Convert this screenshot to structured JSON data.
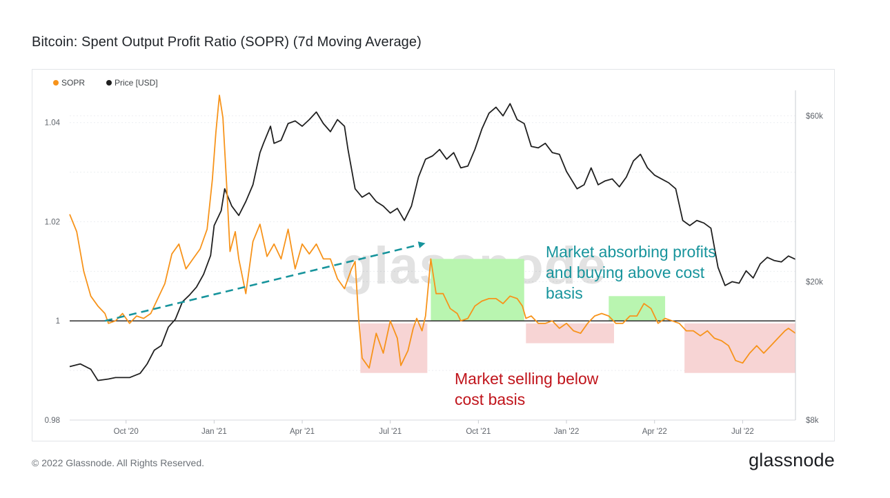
{
  "page": {
    "title": "Bitcoin: Spent Output Profit Ratio (SOPR) (7d Moving Average)",
    "copyright": "© 2022 Glassnode. All Rights Reserved.",
    "brand": "glassnode",
    "watermark": "glassnode"
  },
  "chart_data": {
    "type": "line",
    "title": "Bitcoin: Spent Output Profit Ratio (SOPR) (7d Moving Average)",
    "x_labels": [
      "Oct '20",
      "Jan '21",
      "Apr '21",
      "Jul '21",
      "Oct '21",
      "Jan '22",
      "Apr '22",
      "Jul '22"
    ],
    "y_left": {
      "label": "SOPR",
      "ticks": [
        "0.98",
        "1",
        "1.02",
        "1.04"
      ],
      "tick_values": [
        0.98,
        1.0,
        1.02,
        1.04
      ],
      "range": [
        0.98,
        1.0465
      ]
    },
    "y_right": {
      "label": "Price [USD]",
      "scale": "log",
      "ticks": [
        "$8k",
        "$20k",
        "$60k"
      ],
      "tick_values": [
        8000,
        20000,
        60000
      ],
      "range": [
        8000,
        71000
      ]
    },
    "reference_line": {
      "value": 1,
      "axis": "left"
    },
    "legend": [
      "SOPR",
      "Price [USD]"
    ],
    "series": [
      {
        "name": "SOPR",
        "axis": "left",
        "color": "#f7931a",
        "points": [
          [
            2020.59,
            1.0215
          ],
          [
            2020.61,
            1.018
          ],
          [
            2020.63,
            1.01
          ],
          [
            2020.65,
            1.005
          ],
          [
            2020.67,
            1.003
          ],
          [
            2020.69,
            1.0015
          ],
          [
            2020.7,
            0.9995
          ],
          [
            2020.72,
            1.0
          ],
          [
            2020.74,
            1.0015
          ],
          [
            2020.76,
            0.9995
          ],
          [
            2020.78,
            1.001
          ],
          [
            2020.8,
            1.0005
          ],
          [
            2020.82,
            1.0015
          ],
          [
            2020.84,
            1.0045
          ],
          [
            2020.86,
            1.0075
          ],
          [
            2020.88,
            1.0135
          ],
          [
            2020.9,
            1.0155
          ],
          [
            2020.92,
            1.0105
          ],
          [
            2020.94,
            1.0125
          ],
          [
            2020.96,
            1.0145
          ],
          [
            2020.98,
            1.0185
          ],
          [
            2020.995,
            1.0285
          ],
          [
            2021.005,
            1.038
          ],
          [
            2021.015,
            1.0455
          ],
          [
            2021.025,
            1.041
          ],
          [
            2021.035,
            1.028
          ],
          [
            2021.045,
            1.014
          ],
          [
            2021.06,
            1.018
          ],
          [
            2021.07,
            1.0125
          ],
          [
            2021.09,
            1.0055
          ],
          [
            2021.11,
            1.016
          ],
          [
            2021.13,
            1.0195
          ],
          [
            2021.15,
            1.013
          ],
          [
            2021.17,
            1.0155
          ],
          [
            2021.19,
            1.0125
          ],
          [
            2021.21,
            1.0185
          ],
          [
            2021.23,
            1.0105
          ],
          [
            2021.25,
            1.0155
          ],
          [
            2021.27,
            1.0135
          ],
          [
            2021.29,
            1.0155
          ],
          [
            2021.31,
            1.0125
          ],
          [
            2021.33,
            1.0125
          ],
          [
            2021.35,
            1.0085
          ],
          [
            2021.37,
            1.0065
          ],
          [
            2021.39,
            1.0105
          ],
          [
            2021.4,
            1.012
          ],
          [
            2021.41,
            1.0005
          ],
          [
            2021.42,
            0.9925
          ],
          [
            2021.44,
            0.9905
          ],
          [
            2021.46,
            0.9975
          ],
          [
            2021.48,
            0.9935
          ],
          [
            2021.5,
            1.0
          ],
          [
            2021.52,
            0.9965
          ],
          [
            2021.53,
            0.991
          ],
          [
            2021.55,
            0.994
          ],
          [
            2021.565,
            0.9985
          ],
          [
            2021.575,
            1.0005
          ],
          [
            2021.59,
            0.998
          ],
          [
            2021.6,
            1.001
          ],
          [
            2021.615,
            1.0125
          ],
          [
            2021.63,
            1.0055
          ],
          [
            2021.65,
            1.0055
          ],
          [
            2021.67,
            1.0025
          ],
          [
            2021.69,
            1.0015
          ],
          [
            2021.7,
            1.0
          ],
          [
            2021.72,
            1.0005
          ],
          [
            2021.74,
            1.003
          ],
          [
            2021.76,
            1.004
          ],
          [
            2021.78,
            1.0045
          ],
          [
            2021.8,
            1.0045
          ],
          [
            2021.82,
            1.0035
          ],
          [
            2021.84,
            1.005
          ],
          [
            2021.86,
            1.0045
          ],
          [
            2021.875,
            1.003
          ],
          [
            2021.885,
            1.0005
          ],
          [
            2021.9,
            1.001
          ],
          [
            2021.92,
            0.9995
          ],
          [
            2021.94,
            0.9995
          ],
          [
            2021.96,
            1.0
          ],
          [
            2021.98,
            0.9985
          ],
          [
            2022.0,
            0.9995
          ],
          [
            2022.02,
            0.998
          ],
          [
            2022.04,
            0.9975
          ],
          [
            2022.06,
            0.9995
          ],
          [
            2022.08,
            1.001
          ],
          [
            2022.1,
            1.0015
          ],
          [
            2022.12,
            1.001
          ],
          [
            2022.14,
            0.9995
          ],
          [
            2022.16,
            0.9995
          ],
          [
            2022.18,
            1.001
          ],
          [
            2022.2,
            1.001
          ],
          [
            2022.22,
            1.0035
          ],
          [
            2022.24,
            1.0025
          ],
          [
            2022.26,
            0.9995
          ],
          [
            2022.28,
            1.0005
          ],
          [
            2022.3,
            1.0
          ],
          [
            2022.32,
            0.9995
          ],
          [
            2022.34,
            0.998
          ],
          [
            2022.36,
            0.998
          ],
          [
            2022.38,
            0.997
          ],
          [
            2022.4,
            0.998
          ],
          [
            2022.42,
            0.9965
          ],
          [
            2022.44,
            0.996
          ],
          [
            2022.46,
            0.995
          ],
          [
            2022.48,
            0.992
          ],
          [
            2022.5,
            0.9915
          ],
          [
            2022.52,
            0.9935
          ],
          [
            2022.54,
            0.995
          ],
          [
            2022.56,
            0.9935
          ],
          [
            2022.58,
            0.995
          ],
          [
            2022.6,
            0.9965
          ],
          [
            2022.62,
            0.998
          ],
          [
            2022.63,
            0.9985
          ],
          [
            2022.65,
            0.9975
          ]
        ]
      },
      {
        "name": "Price [USD]",
        "axis": "right",
        "color": "#1f1f1f",
        "points": [
          [
            2020.59,
            11400
          ],
          [
            2020.62,
            11600
          ],
          [
            2020.65,
            11200
          ],
          [
            2020.67,
            10400
          ],
          [
            2020.7,
            10500
          ],
          [
            2020.72,
            10600
          ],
          [
            2020.76,
            10600
          ],
          [
            2020.79,
            10900
          ],
          [
            2020.81,
            11600
          ],
          [
            2020.83,
            12700
          ],
          [
            2020.85,
            13100
          ],
          [
            2020.87,
            14800
          ],
          [
            2020.89,
            15600
          ],
          [
            2020.91,
            17500
          ],
          [
            2020.93,
            18300
          ],
          [
            2020.95,
            19300
          ],
          [
            2020.97,
            21000
          ],
          [
            2020.99,
            23800
          ],
          [
            2021.0,
            29000
          ],
          [
            2021.02,
            32000
          ],
          [
            2021.03,
            37000
          ],
          [
            2021.05,
            33000
          ],
          [
            2021.07,
            31000
          ],
          [
            2021.09,
            34000
          ],
          [
            2021.11,
            38000
          ],
          [
            2021.13,
            47000
          ],
          [
            2021.14,
            50000
          ],
          [
            2021.16,
            56000
          ],
          [
            2021.17,
            50000
          ],
          [
            2021.19,
            51000
          ],
          [
            2021.21,
            57000
          ],
          [
            2021.23,
            58000
          ],
          [
            2021.25,
            56000
          ],
          [
            2021.27,
            58500
          ],
          [
            2021.29,
            61500
          ],
          [
            2021.31,
            57000
          ],
          [
            2021.33,
            54000
          ],
          [
            2021.35,
            58500
          ],
          [
            2021.37,
            56000
          ],
          [
            2021.38,
            48000
          ],
          [
            2021.4,
            37000
          ],
          [
            2021.42,
            35000
          ],
          [
            2021.44,
            36000
          ],
          [
            2021.46,
            34000
          ],
          [
            2021.48,
            33000
          ],
          [
            2021.5,
            31500
          ],
          [
            2021.52,
            32500
          ],
          [
            2021.54,
            30000
          ],
          [
            2021.56,
            33000
          ],
          [
            2021.58,
            40000
          ],
          [
            2021.6,
            45000
          ],
          [
            2021.62,
            46000
          ],
          [
            2021.64,
            48000
          ],
          [
            2021.66,
            45000
          ],
          [
            2021.68,
            47000
          ],
          [
            2021.7,
            42500
          ],
          [
            2021.72,
            43000
          ],
          [
            2021.74,
            48000
          ],
          [
            2021.76,
            55000
          ],
          [
            2021.78,
            61000
          ],
          [
            2021.8,
            63500
          ],
          [
            2021.82,
            60000
          ],
          [
            2021.84,
            65000
          ],
          [
            2021.86,
            58500
          ],
          [
            2021.88,
            57000
          ],
          [
            2021.9,
            49000
          ],
          [
            2021.92,
            48500
          ],
          [
            2021.94,
            50000
          ],
          [
            2021.96,
            47000
          ],
          [
            2021.98,
            46500
          ],
          [
            2022.0,
            41500
          ],
          [
            2022.03,
            37000
          ],
          [
            2022.05,
            38000
          ],
          [
            2022.07,
            42500
          ],
          [
            2022.09,
            38000
          ],
          [
            2022.11,
            39000
          ],
          [
            2022.13,
            39500
          ],
          [
            2022.15,
            37500
          ],
          [
            2022.17,
            40000
          ],
          [
            2022.19,
            44500
          ],
          [
            2022.21,
            46500
          ],
          [
            2022.23,
            42500
          ],
          [
            2022.25,
            40500
          ],
          [
            2022.27,
            39500
          ],
          [
            2022.29,
            38500
          ],
          [
            2022.31,
            37000
          ],
          [
            2022.33,
            30000
          ],
          [
            2022.35,
            29000
          ],
          [
            2022.37,
            30000
          ],
          [
            2022.39,
            29500
          ],
          [
            2022.41,
            28500
          ],
          [
            2022.43,
            22000
          ],
          [
            2022.45,
            19500
          ],
          [
            2022.47,
            20000
          ],
          [
            2022.49,
            19800
          ],
          [
            2022.51,
            21500
          ],
          [
            2022.53,
            20500
          ],
          [
            2022.55,
            22500
          ],
          [
            2022.57,
            23500
          ],
          [
            2022.59,
            23000
          ],
          [
            2022.61,
            22800
          ],
          [
            2022.63,
            23700
          ],
          [
            2022.65,
            23200
          ]
        ]
      }
    ],
    "highlight_regions": [
      {
        "kind": "profit-absorption",
        "color": "#b9f5b0",
        "x_start": 2021.615,
        "x_end": 2021.88,
        "y_low": 1.0,
        "y_high": 1.0125
      },
      {
        "kind": "profit-absorption",
        "color": "#b9f5b0",
        "x_start": 2022.12,
        "x_end": 2022.28,
        "y_low": 1.0,
        "y_high": 1.005
      },
      {
        "kind": "loss-selling",
        "color": "#f7d4d4",
        "x_start": 2021.415,
        "x_end": 2021.605,
        "y_low": 0.9895,
        "y_high": 0.9995
      },
      {
        "kind": "loss-selling",
        "color": "#f7d4d4",
        "x_start": 2021.885,
        "x_end": 2022.135,
        "y_low": 0.9955,
        "y_high": 0.9995
      },
      {
        "kind": "loss-selling",
        "color": "#f7d4d4",
        "x_start": 2022.335,
        "x_end": 2022.65,
        "y_low": 0.9895,
        "y_high": 0.9995
      }
    ],
    "trend_arrow": {
      "color": "#17949c",
      "from": [
        2020.69,
        1.0
      ],
      "to": [
        2021.59,
        1.0155
      ]
    },
    "annotations": [
      {
        "lines": [
          "Market absorbing profits",
          "and buying above cost",
          "basis"
        ],
        "color": "#17949c"
      },
      {
        "lines": [
          "Market selling below",
          "cost basis"
        ],
        "color": "#c0141b"
      }
    ]
  }
}
